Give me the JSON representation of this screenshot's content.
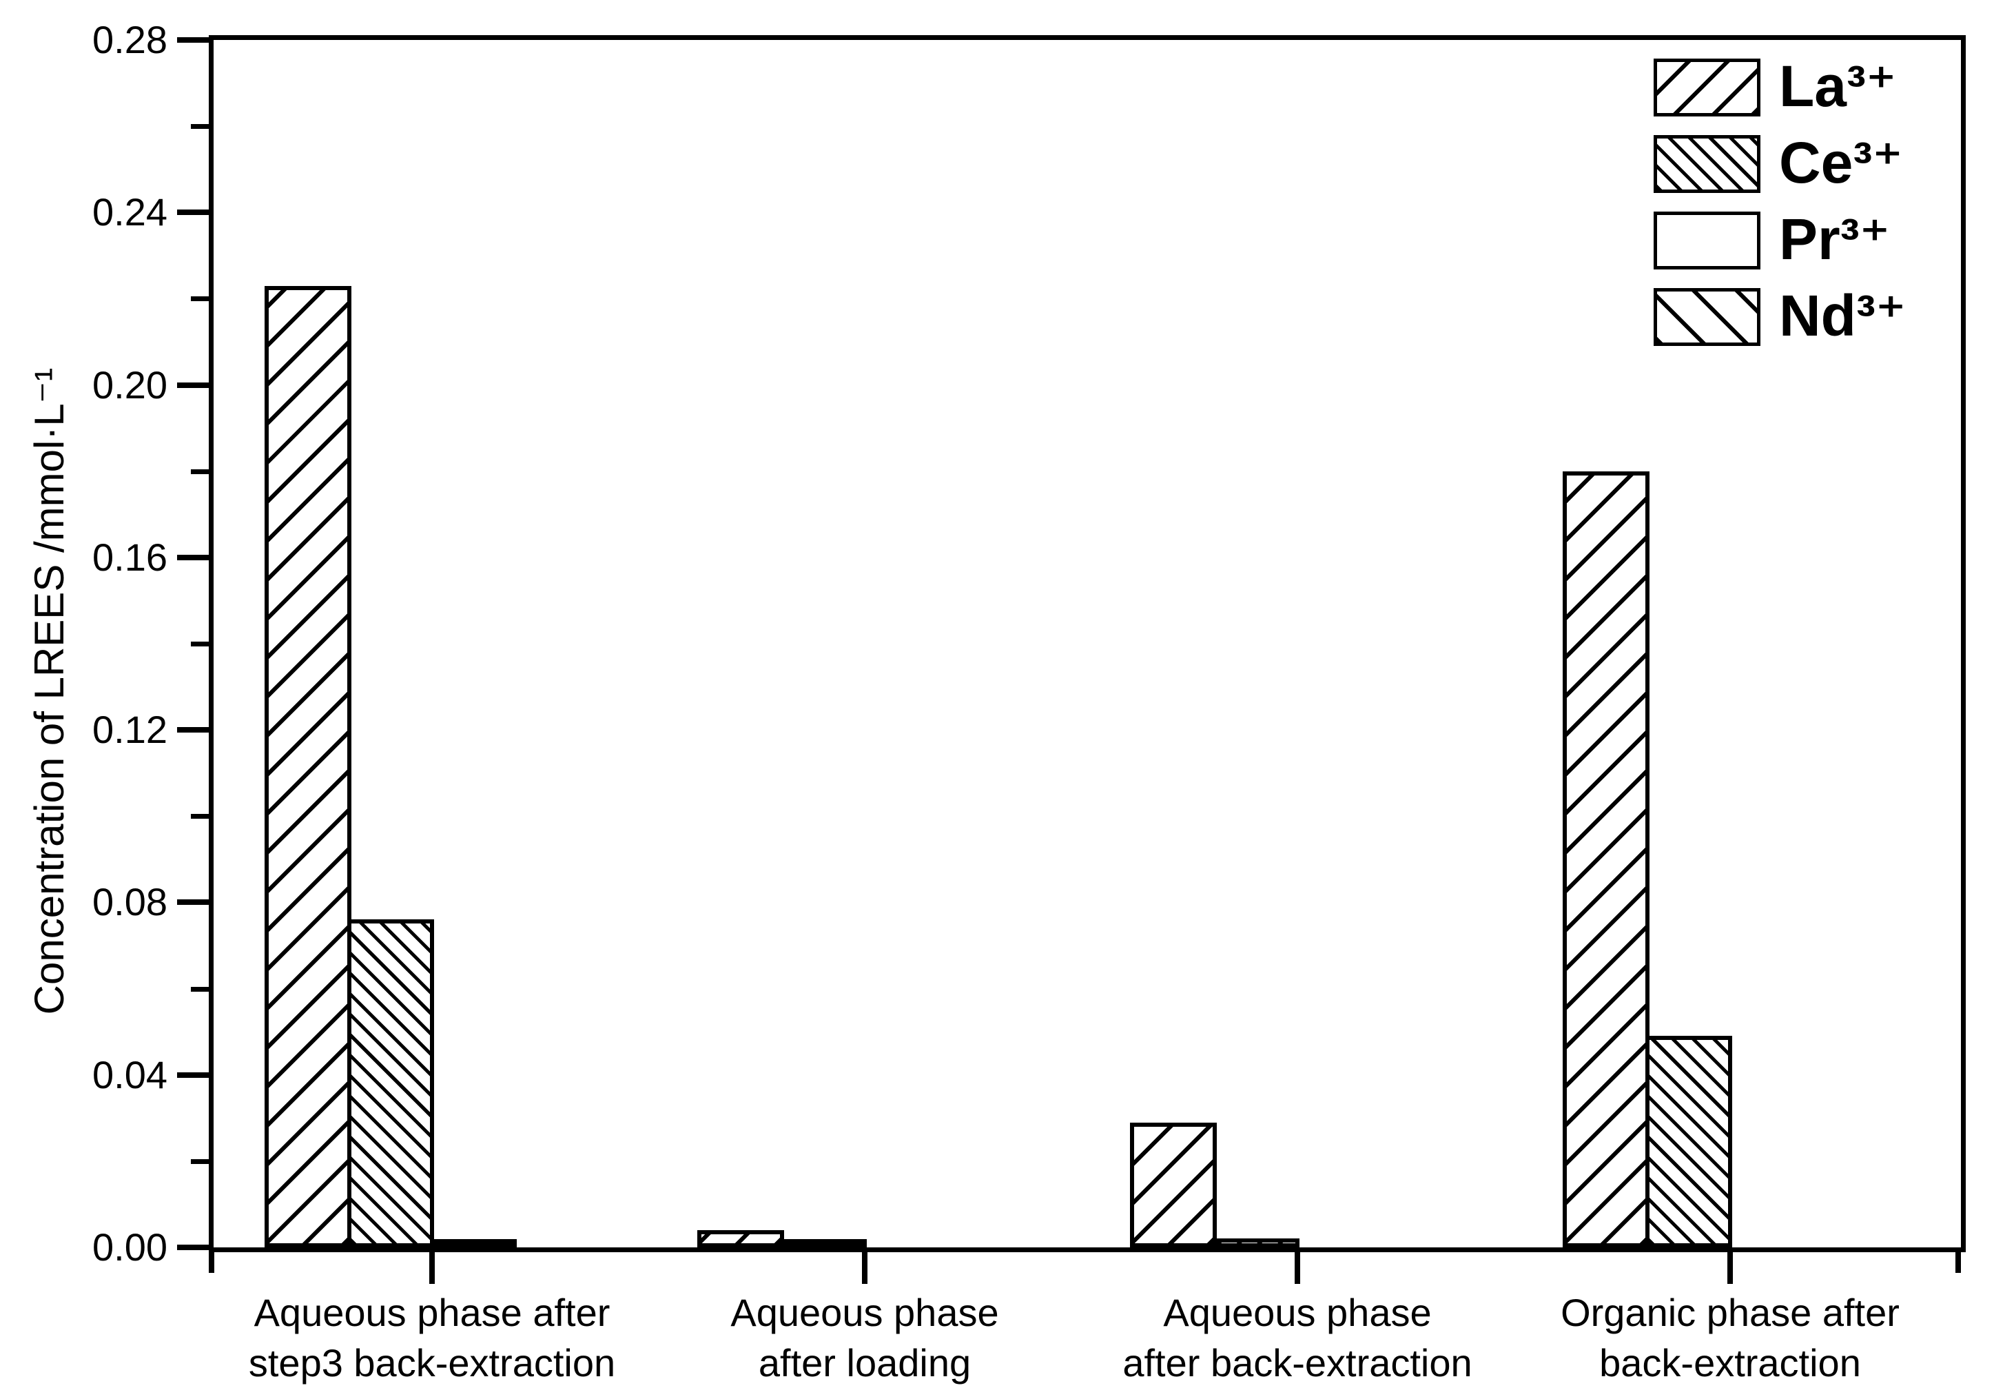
{
  "chart_data": {
    "type": "bar",
    "ylabel": "Concentration of LREES /mmol·L⁻¹",
    "ylim": [
      0,
      0.28
    ],
    "y_major_step": 0.04,
    "y_minor_step": 0.02,
    "y_major_ticks": [
      0.0,
      0.04,
      0.08,
      0.12,
      0.16,
      0.2,
      0.24,
      0.28
    ],
    "grid": false,
    "legend_position": "top-right",
    "categories": [
      {
        "lines": [
          "Aqueous phase after",
          "step3 back-extraction"
        ]
      },
      {
        "lines": [
          "Aqueous phase",
          "after loading"
        ]
      },
      {
        "lines": [
          "Aqueous phase",
          "after back-extraction"
        ]
      },
      {
        "lines": [
          "Organic phase after",
          "back-extraction"
        ]
      }
    ],
    "series": [
      {
        "name": "La³⁺",
        "hatch": "forward-wide",
        "values": [
          0.223,
          0.004,
          0.029,
          0.18
        ]
      },
      {
        "name": "Ce³⁺",
        "hatch": "back-dense",
        "values": [
          0.076,
          0.001,
          0.002,
          0.049
        ]
      },
      {
        "name": "Pr³⁺",
        "hatch": "none",
        "values": [
          0.001,
          0.0,
          0.0,
          0.0
        ]
      },
      {
        "name": "Nd³⁺",
        "hatch": "back-wide",
        "values": [
          0.0,
          0.0,
          0.0,
          0.0
        ]
      }
    ],
    "colors": {
      "background": "#ffffff",
      "bar_fill": "#ffffff",
      "bar_border": "#000000",
      "axis": "#000000",
      "text": "#000000"
    }
  }
}
